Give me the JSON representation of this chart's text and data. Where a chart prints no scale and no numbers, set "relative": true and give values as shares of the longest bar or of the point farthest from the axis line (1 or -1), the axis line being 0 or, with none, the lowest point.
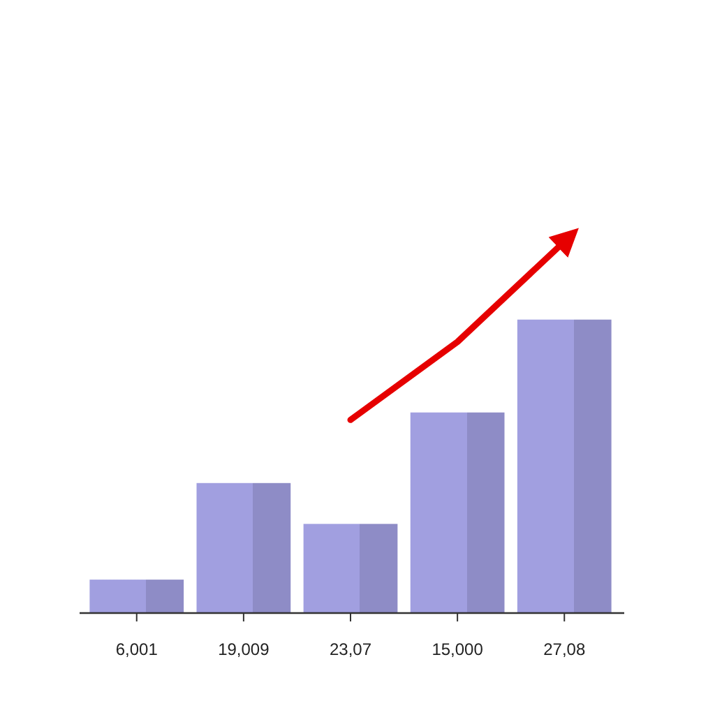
{
  "chart_data": {
    "type": "bar",
    "relative": true,
    "categories": [
      "6,001",
      "19,009",
      "23,07",
      "15,000",
      "27,08"
    ],
    "series": [
      {
        "color": "#a19fe0",
        "values": [
          0.09,
          0.35,
          0.24,
          0.54,
          0.79
        ]
      },
      {
        "type": "line",
        "color": "#e60000",
        "values": [
          null,
          null,
          0.52,
          0.73,
          1
        ]
      }
    ]
  }
}
